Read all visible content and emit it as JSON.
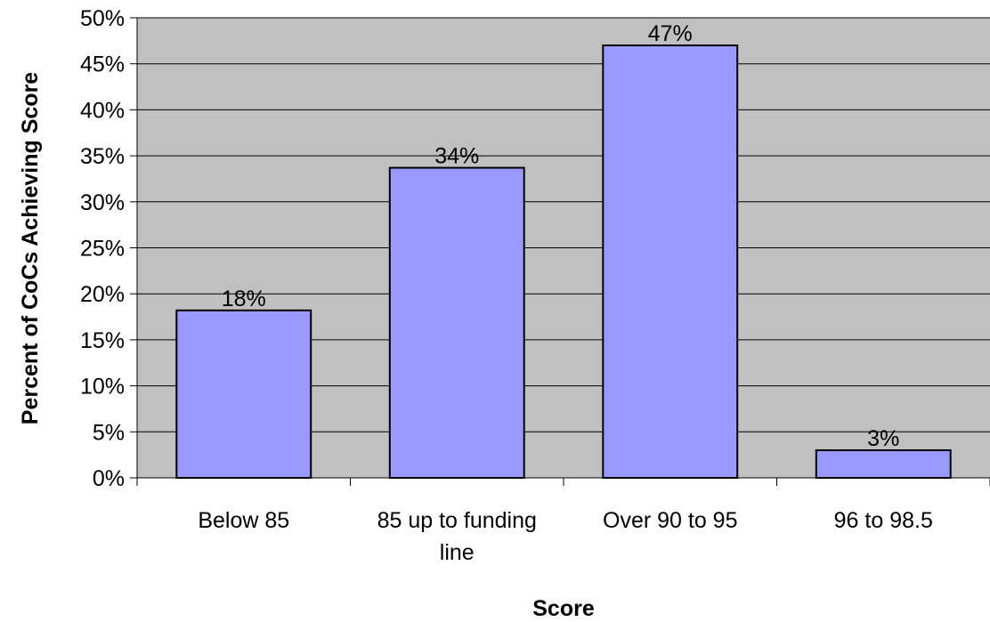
{
  "chart_data": {
    "type": "bar",
    "title": "",
    "xlabel": "Score",
    "ylabel": "Percent of CoCs Achieving Score",
    "categories": [
      "Below 85",
      "85 up to funding line",
      "Over 90 to 95",
      "96 to 98.5"
    ],
    "category_lines": [
      [
        "Below 85"
      ],
      [
        "85 up to funding",
        "line"
      ],
      [
        "Over 90 to 95"
      ],
      [
        "96 to 98.5"
      ]
    ],
    "values": [
      18.2,
      33.7,
      47.0,
      3.0
    ],
    "value_labels": [
      "18%",
      "34%",
      "47%",
      "3%"
    ],
    "ylim": [
      0,
      50
    ],
    "yticks": [
      0,
      5,
      10,
      15,
      20,
      25,
      30,
      35,
      40,
      45,
      50
    ],
    "ytick_labels": [
      "0%",
      "5%",
      "10%",
      "15%",
      "20%",
      "25%",
      "30%",
      "35%",
      "40%",
      "45%",
      "50%"
    ],
    "grid": true,
    "legend": "none",
    "colors": {
      "bar_fill": "#9999ff",
      "bar_stroke": "#000000",
      "plot_background": "#c0c0c0",
      "gridline": "#000000"
    }
  }
}
